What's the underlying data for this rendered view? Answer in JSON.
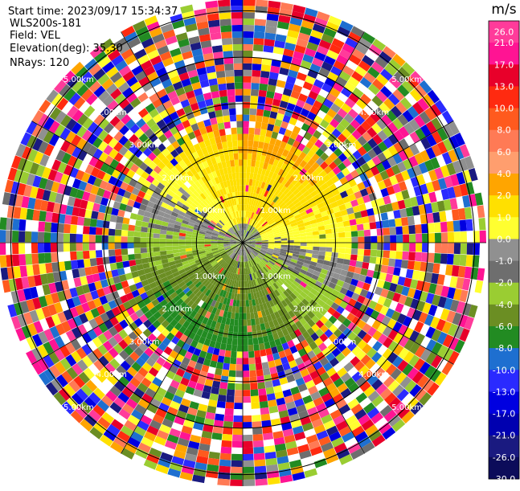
{
  "header": {
    "start_time": "Start time: 2023/09/17 15:34:37",
    "instrument": "WLS200s-181",
    "field": "Field: VEL",
    "elevation": "Elevation(deg): 35.30",
    "nrays": "NRays: 120"
  },
  "chart_data": {
    "type": "heatmap",
    "projection": "polar-ppi",
    "field": "VEL",
    "n_rays": 120,
    "units": "m/s",
    "range_rings_km": [
      1,
      2,
      3,
      4,
      5
    ],
    "ring_labels": [
      "1.00km",
      "2.00km",
      "3.00km",
      "4.00km",
      "5.00km"
    ],
    "clear_signal_max_km": 2.3,
    "colorbar": {
      "title": "m/s",
      "ticks": [
        "26.0",
        "21.0",
        "17.0",
        "13.0",
        "10.0",
        "8.0",
        "6.0",
        "4.0",
        "2.0",
        "1.0",
        "0.0",
        "-1.0",
        "-2.0",
        "-4.0",
        "-6.0",
        "-8.0",
        "-10.0",
        "-13.0",
        "-17.0",
        "-21.0",
        "-26.0",
        "-30.0"
      ],
      "colors": [
        "#ff3b9a",
        "#ff1493",
        "#e8002a",
        "#ff2a10",
        "#ff5a1e",
        "#ff7a55",
        "#ff9e6e",
        "#ffa500",
        "#ffe000",
        "#ffff30",
        "#909090",
        "#6e6e6e",
        "#9acd32",
        "#6b8e23",
        "#228b22",
        "#1e6fd0",
        "#2a2aff",
        "#0000e0",
        "#0000b0",
        "#1a1a80",
        "#0c0c5a"
      ]
    }
  }
}
